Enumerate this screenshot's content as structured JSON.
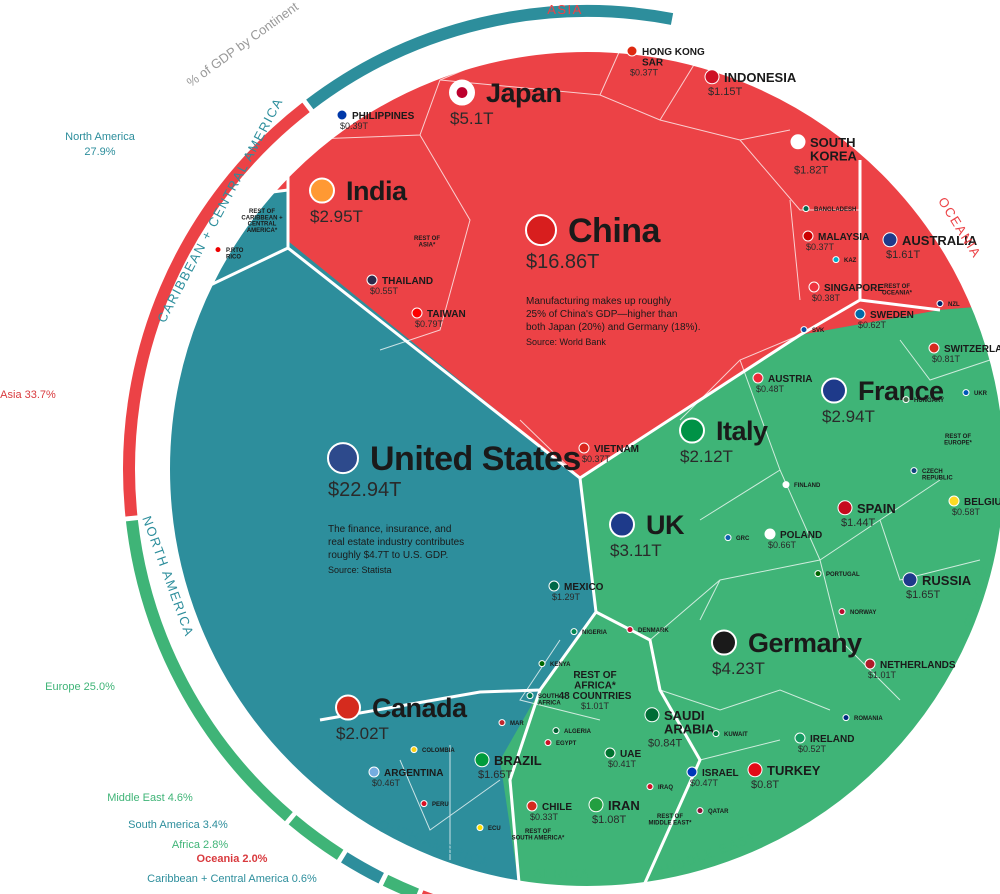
{
  "chart_data": {
    "type": "voronoi-treemap",
    "title": "",
    "ring_title": "% of GDP by Continent",
    "colors": {
      "asia": "#ec4246",
      "north_america": "#2d8e9c",
      "europe": "#3fb477",
      "south_america": "#2d8e9c",
      "africa": "#3fb477",
      "middle_east": "#3fb477",
      "oceania": "#ec4246",
      "caribbean": "#2d8e9c",
      "cell_border": "#ffffff",
      "label_dark": "#1a1a1a"
    },
    "continents": [
      {
        "name": "North America",
        "share_label": "North America\n27.9%",
        "value": 27.9,
        "color": "#2d8e9c"
      },
      {
        "name": "Asia",
        "share_label": "Asia 33.7%",
        "value": 33.7,
        "color": "#ec4246"
      },
      {
        "name": "Europe",
        "share_label": "Europe 25.0%",
        "value": 25.0,
        "color": "#3fb477"
      },
      {
        "name": "Middle East",
        "share_label": "Middle East 4.6%",
        "value": 4.6,
        "color": "#3fb477"
      },
      {
        "name": "South America",
        "share_label": "South America 3.4%",
        "value": 3.4,
        "color": "#2d8e9c"
      },
      {
        "name": "Africa",
        "share_label": "Africa 2.8%",
        "value": 2.8,
        "color": "#3fb477"
      },
      {
        "name": "Oceania",
        "share_label": "Oceania 2.0%",
        "value": 2.0,
        "color": "#ec4246"
      },
      {
        "name": "Caribbean + Central America",
        "share_label": "Caribbean + Central America 0.6%",
        "value": 0.6,
        "color": "#2d8e9c"
      }
    ],
    "region_labels": {
      "asia": "ASIA",
      "oceania": "OCEANIA",
      "europe": "EUROPE",
      "middle_east": "MIDDLE EAST",
      "africa": "AFRICA",
      "south_america": "SOUTH AMERICA",
      "north_america": "NORTH AMERICA",
      "caribbean": "CARIBBEAN + CENTRAL AMERICA"
    },
    "countries": [
      {
        "name": "United States",
        "value_label": "$22.94T",
        "value": 22.94,
        "size": "xl",
        "note": "The finance, insurance, and\nreal estate industry contributes\nroughly $4.7T to U.S. GDP.",
        "source": "Source: Statista"
      },
      {
        "name": "China",
        "value_label": "$16.86T",
        "value": 16.86,
        "size": "xl",
        "note": "Manufacturing makes up roughly\n25% of China's GDP—higher than\nboth Japan (20%) and Germany (18%).",
        "source": "Source: World Bank"
      },
      {
        "name": "Japan",
        "value_label": "$5.1T",
        "value": 5.1,
        "size": "l"
      },
      {
        "name": "Germany",
        "value_label": "$4.23T",
        "value": 4.23,
        "size": "l"
      },
      {
        "name": "UK",
        "value_label": "$3.11T",
        "value": 3.11,
        "size": "l"
      },
      {
        "name": "India",
        "value_label": "$2.95T",
        "value": 2.95,
        "size": "l"
      },
      {
        "name": "France",
        "value_label": "$2.94T",
        "value": 2.94,
        "size": "l"
      },
      {
        "name": "Italy",
        "value_label": "$2.12T",
        "value": 2.12,
        "size": "l"
      },
      {
        "name": "Canada",
        "value_label": "$2.02T",
        "value": 2.02,
        "size": "l"
      },
      {
        "name": "SOUTH\nKOREA",
        "value_label": "$1.82T",
        "value": 1.82,
        "size": "m"
      },
      {
        "name": "RUSSIA",
        "value_label": "$1.65T",
        "value": 1.65,
        "size": "m"
      },
      {
        "name": "BRAZIL",
        "value_label": "$1.65T",
        "value": 1.65,
        "size": "m"
      },
      {
        "name": "AUSTRALIA",
        "value_label": "$1.61T",
        "value": 1.61,
        "size": "m"
      },
      {
        "name": "SPAIN",
        "value_label": "$1.44T",
        "value": 1.44,
        "size": "m"
      },
      {
        "name": "MEXICO",
        "value_label": "$1.29T",
        "value": 1.29,
        "size": "s"
      },
      {
        "name": "INDONESIA",
        "value_label": "$1.15T",
        "value": 1.15,
        "size": "m"
      },
      {
        "name": "IRAN",
        "value_label": "$1.08T",
        "value": 1.08,
        "size": "m"
      },
      {
        "name": "NETHERLANDS",
        "value_label": "$1.01T",
        "value": 1.01,
        "size": "s"
      },
      {
        "name": "REST OF\nAFRICA*\n48 COUNTRIES",
        "value_label": "$1.01T",
        "value": 1.01,
        "size": "s"
      },
      {
        "name": "SAUDI\nARABIA",
        "value_label": "$0.84T",
        "value": 0.84,
        "size": "m"
      },
      {
        "name": "SWITZERLAND",
        "value_label": "$0.81T",
        "value": 0.81,
        "size": "s"
      },
      {
        "name": "TURKEY",
        "value_label": "$0.8T",
        "value": 0.8,
        "size": "m"
      },
      {
        "name": "TAIWAN",
        "value_label": "$0.79T",
        "value": 0.79,
        "size": "s"
      },
      {
        "name": "POLAND",
        "value_label": "$0.66T",
        "value": 0.66,
        "size": "s"
      },
      {
        "name": "SWEDEN",
        "value_label": "$0.62T",
        "value": 0.62,
        "size": "s"
      },
      {
        "name": "BELGIUM",
        "value_label": "$0.58T",
        "value": 0.58,
        "size": "s"
      },
      {
        "name": "SINGAPORE",
        "value_label": "$0.38T",
        "value": 0.38,
        "size": "s"
      },
      {
        "name": "THAILAND",
        "value_label": "$0.55T",
        "value": 0.55,
        "size": "s"
      },
      {
        "name": "IRELAND",
        "value_label": "$0.52T",
        "value": 0.52,
        "size": "s"
      },
      {
        "name": "ARGENTINA",
        "value_label": "$0.46T",
        "value": 0.46,
        "size": "s"
      },
      {
        "name": "AUSTRIA",
        "value_label": "$0.48T",
        "value": 0.48,
        "size": "s"
      },
      {
        "name": "UAE",
        "value_label": "$0.41T",
        "value": 0.41,
        "size": "s"
      },
      {
        "name": "ISRAEL",
        "value_label": "$0.47T",
        "value": 0.47,
        "size": "s"
      },
      {
        "name": "PHILIPPINES",
        "value_label": "$0.39T",
        "value": 0.39,
        "size": "s"
      },
      {
        "name": "HONG KONG\nSAR",
        "value_label": "$0.37T",
        "value": 0.37,
        "size": "s"
      },
      {
        "name": "MALAYSIA",
        "value_label": "$0.37T",
        "value": 0.37,
        "size": "s"
      },
      {
        "name": "VIETNAM",
        "value_label": "$0.37T",
        "value": 0.37,
        "size": "s"
      },
      {
        "name": "CHILE",
        "value_label": "$0.33T",
        "value": 0.33,
        "size": "s"
      },
      {
        "name": "REST OF\nCARIBBEAN +\nCENTRAL\nAMERICA*",
        "value_label": "",
        "value": null,
        "size": "xs"
      },
      {
        "name": "REST OF\nASIA*",
        "value_label": "",
        "value": null,
        "size": "xs"
      },
      {
        "name": "REST OF\nEUROPE*",
        "value_label": "",
        "value": null,
        "size": "xs"
      },
      {
        "name": "REST OF\nOCEANIA*",
        "value_label": "",
        "value": null,
        "size": "xs"
      },
      {
        "name": "REST OF\nMIDDLE EAST*",
        "value_label": "",
        "value": null,
        "size": "xs"
      },
      {
        "name": "REST OF\nSOUTH AMERICA*",
        "value_label": "",
        "value": null,
        "size": "xs"
      },
      {
        "name": "COLOMBIA",
        "value_label": "",
        "value": null,
        "size": "xs"
      },
      {
        "name": "PERU",
        "value_label": "",
        "value": null,
        "size": "xs"
      },
      {
        "name": "ECU",
        "value_label": "",
        "value": null,
        "size": "xs"
      },
      {
        "name": "NIGERIA",
        "value_label": "",
        "value": null,
        "size": "xs"
      },
      {
        "name": "KENYA",
        "value_label": "",
        "value": null,
        "size": "xs"
      },
      {
        "name": "SOUTH\nAFRICA",
        "value_label": "",
        "value": null,
        "size": "xs"
      },
      {
        "name": "MAR",
        "value_label": "",
        "value": null,
        "size": "xs"
      },
      {
        "name": "ALGERIA",
        "value_label": "",
        "value": null,
        "size": "xs"
      },
      {
        "name": "EGYPT",
        "value_label": "",
        "value": null,
        "size": "xs"
      },
      {
        "name": "IRAQ",
        "value_label": "",
        "value": null,
        "size": "xs"
      },
      {
        "name": "QATAR",
        "value_label": "",
        "value": null,
        "size": "xs"
      },
      {
        "name": "KUWAIT",
        "value_label": "",
        "value": null,
        "size": "xs"
      },
      {
        "name": "DENMARK",
        "value_label": "",
        "value": null,
        "size": "xs"
      },
      {
        "name": "NORWAY",
        "value_label": "",
        "value": null,
        "size": "xs"
      },
      {
        "name": "PORTUGAL",
        "value_label": "",
        "value": null,
        "size": "xs"
      },
      {
        "name": "ROMANIA",
        "value_label": "",
        "value": null,
        "size": "xs"
      },
      {
        "name": "CZECH\nREPUBLIC",
        "value_label": "",
        "value": null,
        "size": "xs"
      },
      {
        "name": "FINLAND",
        "value_label": "",
        "value": null,
        "size": "xs"
      },
      {
        "name": "HUNGARY",
        "value_label": "",
        "value": null,
        "size": "xs"
      },
      {
        "name": "UKR",
        "value_label": "",
        "value": null,
        "size": "xs"
      },
      {
        "name": "GRC",
        "value_label": "",
        "value": null,
        "size": "xs"
      },
      {
        "name": "SVK",
        "value_label": "",
        "value": null,
        "size": "xs"
      },
      {
        "name": "BANGLADESH",
        "value_label": "",
        "value": null,
        "size": "xs"
      },
      {
        "name": "KAZ",
        "value_label": "",
        "value": null,
        "size": "xs"
      },
      {
        "name": "NZL",
        "value_label": "",
        "value": null,
        "size": "xs"
      },
      {
        "name": "P.RTO\nRICO",
        "value_label": "",
        "value": null,
        "size": "xs"
      }
    ]
  }
}
